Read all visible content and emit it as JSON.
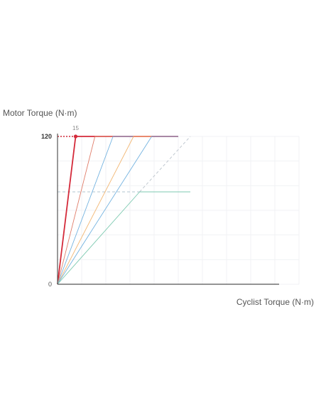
{
  "chart_data": {
    "type": "line",
    "ylabel": "Motor Torque (N·m)",
    "xlabel": "Cyclist Torque (N·m)",
    "xlim": [
      0,
      200
    ],
    "ylim": [
      0,
      120
    ],
    "y_ticks": [
      {
        "value": 0,
        "label": "0"
      },
      {
        "value": 120,
        "label": "120"
      }
    ],
    "annotation": {
      "label": "15",
      "x": 15,
      "y": 120
    },
    "grid": true,
    "series": [
      {
        "color": "#d42a3a",
        "emphasis": true,
        "points": [
          [
            0,
            0
          ],
          [
            15,
            120
          ],
          [
            100,
            120
          ]
        ]
      },
      {
        "color": "#e07d6a",
        "points": [
          [
            0,
            0
          ],
          [
            31,
            120
          ],
          [
            100,
            120
          ]
        ]
      },
      {
        "color": "#74b3e0",
        "points": [
          [
            0,
            0
          ],
          [
            46,
            120
          ],
          [
            100,
            120
          ]
        ]
      },
      {
        "color": "#f2b774",
        "points": [
          [
            0,
            0
          ],
          [
            63,
            120
          ],
          [
            100,
            120
          ]
        ]
      },
      {
        "color": "#74b3e0",
        "points": [
          [
            0,
            0
          ],
          [
            78,
            120
          ],
          [
            100,
            120
          ]
        ]
      },
      {
        "color": "#7cc9b0",
        "points": [
          [
            0,
            0
          ],
          [
            68,
            75
          ],
          [
            110,
            75
          ]
        ]
      }
    ],
    "reference_lines": [
      {
        "color": "#d42a3a",
        "style": "dotted",
        "points": [
          [
            0,
            120
          ],
          [
            15,
            120
          ]
        ]
      },
      {
        "color": "#b0c4d0",
        "style": "dashed",
        "points": [
          [
            0,
            75
          ],
          [
            68,
            75
          ]
        ]
      },
      {
        "color": "#c0c8d0",
        "style": "dashed",
        "points": [
          [
            68,
            75
          ],
          [
            110,
            120
          ]
        ]
      }
    ]
  }
}
